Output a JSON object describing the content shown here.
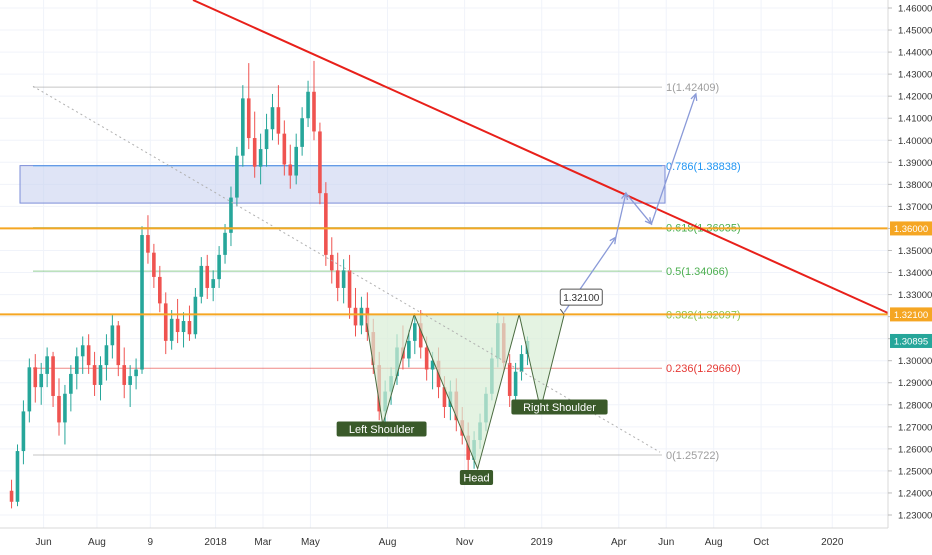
{
  "chart_data": {
    "type": "candlestick",
    "title": "",
    "colors": {
      "up": "#26a69a",
      "down": "#ef5350",
      "trendline": "#e8201a",
      "horizontal_level": "#f5a623",
      "supply_zone": "#c5cdef",
      "pattern_fill": "#d8eed5",
      "projection": "#8a9ad8"
    },
    "y_axis": {
      "min": 1.225,
      "max": 1.465,
      "ticks": [
        "1.46000",
        "1.45000",
        "1.44000",
        "1.43000",
        "1.42000",
        "1.41000",
        "1.40000",
        "1.39000",
        "1.38000",
        "1.37000",
        "1.36000",
        "1.35000",
        "1.34000",
        "1.33000",
        "1.32000",
        "1.31000",
        "1.30000",
        "1.29000",
        "1.28000",
        "1.27000",
        "1.26000",
        "1.25000",
        "1.24000",
        "1.23000"
      ],
      "price_tags": [
        {
          "label": "1.36000",
          "value": 1.36,
          "color": "#f5a623"
        },
        {
          "label": "1.32100",
          "value": 1.321,
          "color": "#f5a623"
        },
        {
          "label": "1.30895",
          "value": 1.30895,
          "color": "#26a69a"
        }
      ]
    },
    "x_axis": {
      "ticks": [
        {
          "label": "Jun",
          "week": 6
        },
        {
          "label": "Aug",
          "week": 15
        },
        {
          "label": "9",
          "week": 24
        },
        {
          "label": "2018",
          "week": 35
        },
        {
          "label": "Mar",
          "week": 43
        },
        {
          "label": "May",
          "week": 51
        },
        {
          "label": "Aug",
          "week": 64
        },
        {
          "label": "Nov",
          "week": 77
        },
        {
          "label": "2019",
          "week": 90
        },
        {
          "label": "Apr",
          "week": 103
        },
        {
          "label": "Jun",
          "week": 111
        },
        {
          "label": "Aug",
          "week": 119
        },
        {
          "label": "Oct",
          "week": 127
        },
        {
          "label": "2020",
          "week": 139
        }
      ]
    },
    "fib_levels": [
      {
        "label": "1(1.42409)",
        "value": 1.42409,
        "color": "#9e9e9e"
      },
      {
        "label": "0.786(1.38838)",
        "value": 1.38838,
        "color": "#2196f3"
      },
      {
        "label": "0.618(1.36035)",
        "value": 1.36035,
        "color": "#4caf50"
      },
      {
        "label": "0.5(1.34066)",
        "value": 1.34066,
        "color": "#4caf50"
      },
      {
        "label": "0.382(1.32097)",
        "value": 1.32097,
        "color": "#8bc34a"
      },
      {
        "label": "0.236(1.29660)",
        "value": 1.2966,
        "color": "#e53935"
      },
      {
        "label": "0(1.25722)",
        "value": 1.25722,
        "color": "#9e9e9e"
      }
    ],
    "horizontal_levels": [
      1.36,
      1.321
    ],
    "annotations": [
      {
        "label": "Left Shoulder",
        "week": 63,
        "value": 1.269
      },
      {
        "label": "Head",
        "week": 79,
        "value": 1.247
      },
      {
        "label": "Right Shoulder",
        "week": 93,
        "value": 1.279
      },
      {
        "label": "1.32100",
        "week": 96,
        "value": 1.327
      }
    ],
    "candles": [
      [
        1.241,
        1.246,
        1.233,
        1.236
      ],
      [
        1.236,
        1.262,
        1.234,
        1.259
      ],
      [
        1.259,
        1.282,
        1.253,
        1.277
      ],
      [
        1.277,
        1.301,
        1.272,
        1.297
      ],
      [
        1.297,
        1.303,
        1.281,
        1.288
      ],
      [
        1.288,
        1.299,
        1.28,
        1.294
      ],
      [
        1.294,
        1.306,
        1.288,
        1.302
      ],
      [
        1.302,
        1.304,
        1.279,
        1.284
      ],
      [
        1.284,
        1.292,
        1.266,
        1.272
      ],
      [
        1.272,
        1.289,
        1.262,
        1.285
      ],
      [
        1.285,
        1.298,
        1.277,
        1.294
      ],
      [
        1.294,
        1.306,
        1.287,
        1.302
      ],
      [
        1.302,
        1.311,
        1.294,
        1.307
      ],
      [
        1.307,
        1.312,
        1.294,
        1.298
      ],
      [
        1.298,
        1.304,
        1.284,
        1.289
      ],
      [
        1.289,
        1.302,
        1.282,
        1.298
      ],
      [
        1.298,
        1.312,
        1.291,
        1.307
      ],
      [
        1.307,
        1.321,
        1.301,
        1.316
      ],
      [
        1.316,
        1.318,
        1.293,
        1.298
      ],
      [
        1.298,
        1.306,
        1.283,
        1.289
      ],
      [
        1.289,
        1.298,
        1.279,
        1.293
      ],
      [
        1.293,
        1.301,
        1.287,
        1.296
      ],
      [
        1.296,
        1.361,
        1.294,
        1.357
      ],
      [
        1.357,
        1.366,
        1.344,
        1.349
      ],
      [
        1.349,
        1.353,
        1.333,
        1.338
      ],
      [
        1.338,
        1.343,
        1.322,
        1.326
      ],
      [
        1.326,
        1.331,
        1.303,
        1.309
      ],
      [
        1.309,
        1.323,
        1.305,
        1.319
      ],
      [
        1.319,
        1.328,
        1.308,
        1.313
      ],
      [
        1.313,
        1.322,
        1.306,
        1.318
      ],
      [
        1.318,
        1.325,
        1.309,
        1.312
      ],
      [
        1.312,
        1.333,
        1.31,
        1.329
      ],
      [
        1.329,
        1.347,
        1.326,
        1.343
      ],
      [
        1.343,
        1.348,
        1.328,
        1.333
      ],
      [
        1.333,
        1.341,
        1.327,
        1.337
      ],
      [
        1.337,
        1.352,
        1.333,
        1.348
      ],
      [
        1.348,
        1.362,
        1.344,
        1.358
      ],
      [
        1.358,
        1.379,
        1.352,
        1.374
      ],
      [
        1.374,
        1.397,
        1.37,
        1.393
      ],
      [
        1.393,
        1.425,
        1.388,
        1.419
      ],
      [
        1.419,
        1.435,
        1.396,
        1.401
      ],
      [
        1.401,
        1.413,
        1.383,
        1.388
      ],
      [
        1.388,
        1.403,
        1.38,
        1.396
      ],
      [
        1.396,
        1.412,
        1.388,
        1.405
      ],
      [
        1.405,
        1.421,
        1.4,
        1.415
      ],
      [
        1.415,
        1.425,
        1.398,
        1.403
      ],
      [
        1.403,
        1.409,
        1.384,
        1.389
      ],
      [
        1.389,
        1.398,
        1.378,
        1.384
      ],
      [
        1.384,
        1.403,
        1.38,
        1.397
      ],
      [
        1.397,
        1.415,
        1.393,
        1.41
      ],
      [
        1.41,
        1.427,
        1.406,
        1.422
      ],
      [
        1.422,
        1.436,
        1.4,
        1.404
      ],
      [
        1.404,
        1.408,
        1.371,
        1.376
      ],
      [
        1.376,
        1.381,
        1.343,
        1.348
      ],
      [
        1.348,
        1.356,
        1.335,
        1.341
      ],
      [
        1.341,
        1.349,
        1.327,
        1.333
      ],
      [
        1.333,
        1.346,
        1.326,
        1.341
      ],
      [
        1.341,
        1.348,
        1.319,
        1.324
      ],
      [
        1.324,
        1.333,
        1.311,
        1.316
      ],
      [
        1.316,
        1.329,
        1.312,
        1.324
      ],
      [
        1.324,
        1.331,
        1.309,
        1.313
      ],
      [
        1.313,
        1.319,
        1.294,
        1.298
      ],
      [
        1.298,
        1.304,
        1.273,
        1.277
      ],
      [
        1.277,
        1.291,
        1.271,
        1.286
      ],
      [
        1.286,
        1.297,
        1.28,
        1.293
      ],
      [
        1.293,
        1.312,
        1.289,
        1.306
      ],
      [
        1.306,
        1.316,
        1.296,
        1.301
      ],
      [
        1.301,
        1.314,
        1.297,
        1.309
      ],
      [
        1.309,
        1.321,
        1.303,
        1.317
      ],
      [
        1.317,
        1.323,
        1.301,
        1.306
      ],
      [
        1.306,
        1.311,
        1.291,
        1.296
      ],
      [
        1.296,
        1.304,
        1.287,
        1.3
      ],
      [
        1.3,
        1.306,
        1.283,
        1.288
      ],
      [
        1.288,
        1.293,
        1.274,
        1.279
      ],
      [
        1.279,
        1.291,
        1.273,
        1.286
      ],
      [
        1.286,
        1.292,
        1.268,
        1.273
      ],
      [
        1.273,
        1.279,
        1.262,
        1.266
      ],
      [
        1.266,
        1.272,
        1.25,
        1.255
      ],
      [
        1.255,
        1.268,
        1.251,
        1.264
      ],
      [
        1.264,
        1.276,
        1.26,
        1.272
      ],
      [
        1.272,
        1.288,
        1.268,
        1.285
      ],
      [
        1.285,
        1.306,
        1.282,
        1.301
      ],
      [
        1.301,
        1.322,
        1.297,
        1.317
      ],
      [
        1.317,
        1.32,
        1.295,
        1.299
      ],
      [
        1.299,
        1.303,
        1.279,
        1.284
      ],
      [
        1.284,
        1.299,
        1.28,
        1.295
      ],
      [
        1.295,
        1.307,
        1.291,
        1.303
      ],
      [
        1.303,
        1.311,
        1.298,
        1.30895
      ]
    ]
  }
}
